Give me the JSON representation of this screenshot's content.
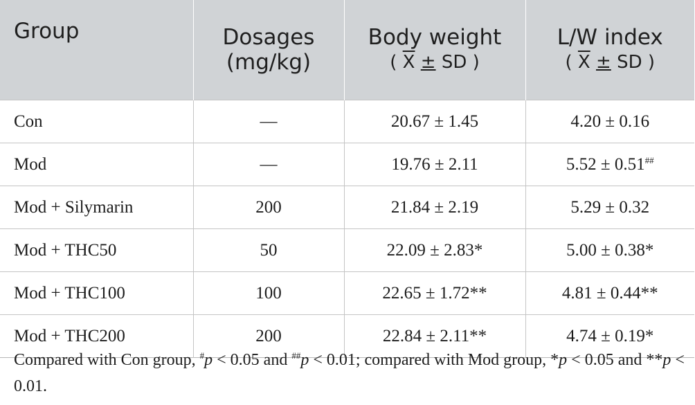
{
  "table": {
    "headers": {
      "group": "Group",
      "dosages_line1": "Dosages",
      "dosages_line2": "(mg/kg)",
      "body_weight": "Body weight",
      "body_weight_sub_open": "( ",
      "body_weight_sub_x": "X",
      "body_weight_sub_pm": "±",
      "body_weight_sub_rest": "SD )",
      "lw_index": "L/W index",
      "lw_sub_open": "( ",
      "lw_sub_x": "X",
      "lw_sub_pm": "±",
      "lw_sub_rest": "SD )"
    },
    "rows": [
      {
        "group": "Con",
        "dosage": "—",
        "body_weight": "20.67 ± 1.45",
        "lw_index": "4.20 ± 0.16",
        "lw_sup": ""
      },
      {
        "group": "Mod",
        "dosage": "—",
        "body_weight": "19.76 ± 2.11",
        "lw_index": "5.52 ± 0.51",
        "lw_sup": "##"
      },
      {
        "group": "Mod + Silymarin",
        "dosage": "200",
        "body_weight": "21.84 ± 2.19",
        "lw_index": "5.29 ± 0.32",
        "lw_sup": ""
      },
      {
        "group": "Mod + THC50",
        "dosage": "50",
        "body_weight": "22.09 ± 2.83*",
        "lw_index": "5.00 ± 0.38*",
        "lw_sup": ""
      },
      {
        "group": "Mod + THC100",
        "dosage": "100",
        "body_weight": "22.65 ± 1.72**",
        "lw_index": "4.81 ± 0.44**",
        "lw_sup": ""
      },
      {
        "group": "Mod + THC200",
        "dosage": "200",
        "body_weight": "22.84 ± 2.11**",
        "lw_index": "4.74 ± 0.19*",
        "lw_sup": ""
      }
    ]
  },
  "footnote": {
    "part1": "Compared with Con group, ",
    "sym1": "#",
    "p1": "p",
    "part2": " < 0.05 and ",
    "sym2": "##",
    "p2": "p",
    "part3": " < 0.01; compared with Mod group, *",
    "p3": "p",
    "part4": " < 0.05 and **",
    "p4": "p",
    "part5": " < 0.01."
  }
}
